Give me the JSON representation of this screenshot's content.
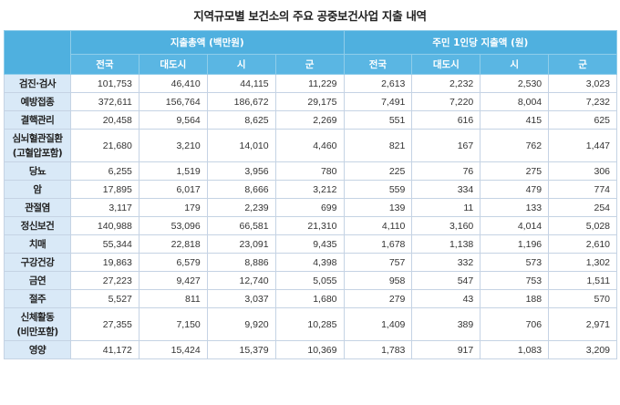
{
  "title": "지역규모별 보건소의 주요 공중보건사업 지출 내역",
  "header": {
    "group1": "지출총액 (백만원)",
    "group2": "주민 1인당 지출액 (원)",
    "sub": [
      "전국",
      "대도시",
      "시",
      "군",
      "전국",
      "대도시",
      "시",
      "군"
    ]
  },
  "rows": [
    {
      "label": "검진·검사",
      "values": [
        "101,753",
        "46,410",
        "44,115",
        "11,229",
        "2,613",
        "2,232",
        "2,530",
        "3,023"
      ]
    },
    {
      "label": "예방접종",
      "values": [
        "372,611",
        "156,764",
        "186,672",
        "29,175",
        "7,491",
        "7,220",
        "8,004",
        "7,232"
      ]
    },
    {
      "label": "결핵관리",
      "values": [
        "20,458",
        "9,564",
        "8,625",
        "2,269",
        "551",
        "616",
        "415",
        "625"
      ]
    },
    {
      "label": "심뇌혈관질환",
      "label2": "(고혈압포함)",
      "values": [
        "21,680",
        "3,210",
        "14,010",
        "4,460",
        "821",
        "167",
        "762",
        "1,447"
      ]
    },
    {
      "label": "당뇨",
      "values": [
        "6,255",
        "1,519",
        "3,956",
        "780",
        "225",
        "76",
        "275",
        "306"
      ]
    },
    {
      "label": "암",
      "values": [
        "17,895",
        "6,017",
        "8,666",
        "3,212",
        "559",
        "334",
        "479",
        "774"
      ]
    },
    {
      "label": "관절염",
      "values": [
        "3,117",
        "179",
        "2,239",
        "699",
        "139",
        "11",
        "133",
        "254"
      ]
    },
    {
      "label": "정신보건",
      "values": [
        "140,988",
        "53,096",
        "66,581",
        "21,310",
        "4,110",
        "3,160",
        "4,014",
        "5,028"
      ]
    },
    {
      "label": "치매",
      "values": [
        "55,344",
        "22,818",
        "23,091",
        "9,435",
        "1,678",
        "1,138",
        "1,196",
        "2,610"
      ]
    },
    {
      "label": "구강건강",
      "values": [
        "19,863",
        "6,579",
        "8,886",
        "4,398",
        "757",
        "332",
        "573",
        "1,302"
      ]
    },
    {
      "label": "금연",
      "values": [
        "27,223",
        "9,427",
        "12,740",
        "5,055",
        "958",
        "547",
        "753",
        "1,511"
      ]
    },
    {
      "label": "절주",
      "values": [
        "5,527",
        "811",
        "3,037",
        "1,680",
        "279",
        "43",
        "188",
        "570"
      ]
    },
    {
      "label": "신체활동",
      "label2": "(비만포함)",
      "values": [
        "27,355",
        "7,150",
        "9,920",
        "10,285",
        "1,409",
        "389",
        "706",
        "2,971"
      ]
    },
    {
      "label": "영양",
      "values": [
        "41,172",
        "15,424",
        "15,379",
        "10,369",
        "1,783",
        "917",
        "1,083",
        "3,209"
      ]
    }
  ]
}
